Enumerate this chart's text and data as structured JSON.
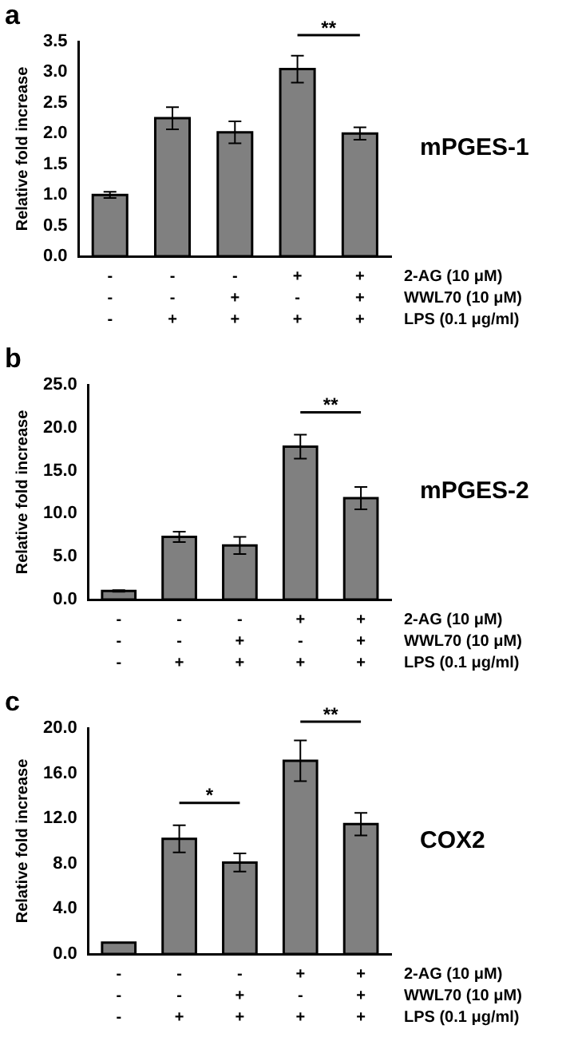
{
  "chart_data": [
    {
      "type": "bar",
      "title": "a",
      "ylabel": "Relative fold increase",
      "xlabel": "2-AG (10 μM)\nWWL70 (10 μM)\nLPS (0.1 μg/ml)",
      "categories": [
        "-\n-\n-",
        "-\n-\n+",
        "-\n+\n+",
        "+\n-\n+",
        "+\n+\n+"
      ],
      "values": [
        1.0,
        2.25,
        2.02,
        3.05,
        2.0
      ],
      "errors": [
        0.05,
        0.18,
        0.18,
        0.22,
        0.1
      ],
      "color": "#808080",
      "ylim": [
        0,
        3.5
      ],
      "yticks": [
        {
          "value": 0,
          "label": "0.0"
        },
        {
          "value": 0.5,
          "label": "0.5"
        },
        {
          "value": 1,
          "label": "1.0"
        },
        {
          "value": 1.5,
          "label": "1.5"
        },
        {
          "value": 2,
          "label": "2.0"
        },
        {
          "value": 2.5,
          "label": "2.5"
        },
        {
          "value": 3,
          "label": "3.0"
        },
        {
          "value": 3.5,
          "label": "3.5"
        }
      ],
      "annotations": [
        "mPGES-1",
        "**"
      ],
      "grid": false,
      "legend": false
    },
    {
      "type": "bar",
      "title": "b",
      "ylabel": "Relative fold increase",
      "xlabel": "2-AG (10 μM)\nWWL70 (10 μM)\nLPS (0.1 μg/ml)",
      "categories": [
        "-\n-\n-",
        "-\n-\n+",
        "-\n+\n+",
        "+\n-\n+",
        "+\n+\n+"
      ],
      "values": [
        1.0,
        7.3,
        6.3,
        17.8,
        11.8
      ],
      "errors": [
        0.1,
        0.6,
        1.0,
        1.4,
        1.3
      ],
      "color": "#808080",
      "ylim": [
        0,
        25
      ],
      "yticks": [
        {
          "value": 0,
          "label": "0.0"
        },
        {
          "value": 5,
          "label": "5.0"
        },
        {
          "value": 10,
          "label": "10.0"
        },
        {
          "value": 15,
          "label": "15.0"
        },
        {
          "value": 20,
          "label": "20.0"
        },
        {
          "value": 25,
          "label": "25.0"
        }
      ],
      "annotations": [
        "mPGES-2",
        "**"
      ],
      "grid": false,
      "legend": false
    },
    {
      "type": "bar",
      "title": "c",
      "ylabel": "Relative fold increase",
      "xlabel": "2-AG (10 μM)\nWWL70 (10 μM)\nLPS (0.1 μg/ml)",
      "categories": [
        "-\n-\n-",
        "-\n-\n+",
        "-\n+\n+",
        "+\n-\n+",
        "+\n+\n+"
      ],
      "values": [
        1.0,
        10.2,
        8.1,
        17.1,
        11.5
      ],
      "errors": [
        null,
        1.2,
        0.8,
        1.8,
        1.0
      ],
      "color": "#808080",
      "ylim": [
        0,
        20
      ],
      "yticks": [
        {
          "value": 0,
          "label": "0.0"
        },
        {
          "value": 4,
          "label": "4.0"
        },
        {
          "value": 8,
          "label": "8.0"
        },
        {
          "value": 12,
          "label": "12.0"
        },
        {
          "value": 16,
          "label": "16.0"
        },
        {
          "value": 20,
          "label": "20.0"
        }
      ],
      "annotations": [
        "COX2",
        "*",
        "**"
      ],
      "grid": false,
      "legend": false
    }
  ]
}
